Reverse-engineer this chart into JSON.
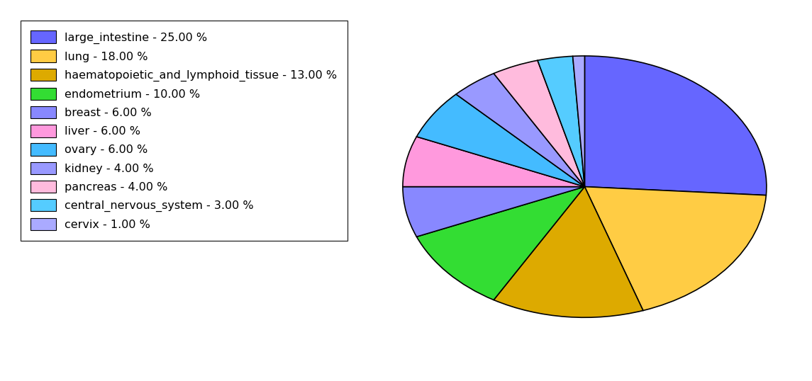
{
  "labels": [
    "large_intestine",
    "lung",
    "haematopoietic_and_lymphoid_tissue",
    "endometrium",
    "breast",
    "liver",
    "ovary",
    "kidney",
    "pancreas",
    "central_nervous_system",
    "cervix"
  ],
  "values": [
    25,
    18,
    13,
    10,
    6,
    6,
    6,
    4,
    4,
    3,
    1
  ],
  "colors": [
    "#6666ff",
    "#ffcc44",
    "#ddaa00",
    "#33dd33",
    "#8888ff",
    "#ff99dd",
    "#44bbff",
    "#9999ff",
    "#ffbbdd",
    "#55ccff",
    "#aaaaff"
  ],
  "legend_labels": [
    "large_intestine - 25.00 %",
    "lung - 18.00 %",
    "haematopoietic_and_lymphoid_tissue - 13.00 %",
    "endometrium - 10.00 %",
    "breast - 6.00 %",
    "liver - 6.00 %",
    "ovary - 6.00 %",
    "kidney - 4.00 %",
    "pancreas - 4.00 %",
    "central_nervous_system - 3.00 %",
    "cervix - 1.00 %"
  ],
  "start_angle": 90,
  "counterclock": false,
  "aspect_ratio": 0.72,
  "edgecolor": "black",
  "linewidth": 1.2,
  "legend_fontsize": 11.5,
  "fig_width": 11.45,
  "fig_height": 5.38
}
